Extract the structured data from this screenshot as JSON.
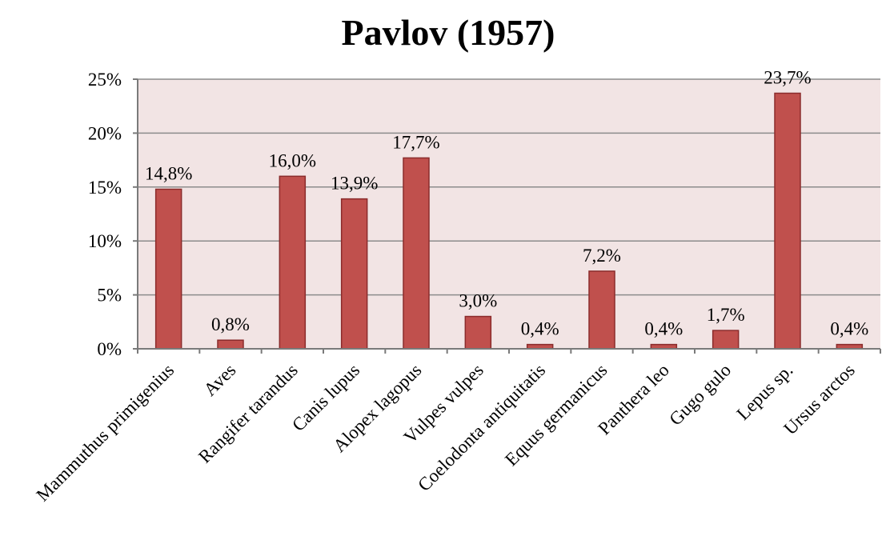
{
  "chart_data": {
    "type": "bar",
    "title": "Pavlov (1957)",
    "xlabel": "",
    "ylabel": "",
    "categories": [
      "Mammuthus primigenius",
      "Aves",
      "Rangifer tarandus",
      "Canis lupus",
      "Alopex lagopus",
      "Vulpes vulpes",
      "Coelodonta antiquitatis",
      "Equus germanicus",
      "Panthera leo",
      "Gugo gulo",
      "Lepus sp.",
      "Ursus arctos"
    ],
    "values": [
      14.8,
      0.8,
      16.0,
      13.9,
      17.7,
      3.0,
      0.4,
      7.2,
      0.4,
      1.7,
      23.7,
      0.4
    ],
    "value_labels": [
      "14,8%",
      "0,8%",
      "16,0%",
      "13,9%",
      "17,7%",
      "3,0%",
      "0,4%",
      "7,2%",
      "0,4%",
      "1,7%",
      "23,7%",
      "0,4%"
    ],
    "ylim": [
      0,
      25
    ],
    "yticks": [
      0,
      5,
      10,
      15,
      20,
      25
    ],
    "ytick_labels": [
      "0%",
      "5%",
      "10%",
      "15%",
      "20%",
      "25%"
    ],
    "grid": true,
    "legend": "none",
    "colors": {
      "bar": "#c0504d",
      "bar_border": "#8b2c2c",
      "plot_background": "#f2e4e4",
      "grid": "#8c8c8c"
    }
  }
}
